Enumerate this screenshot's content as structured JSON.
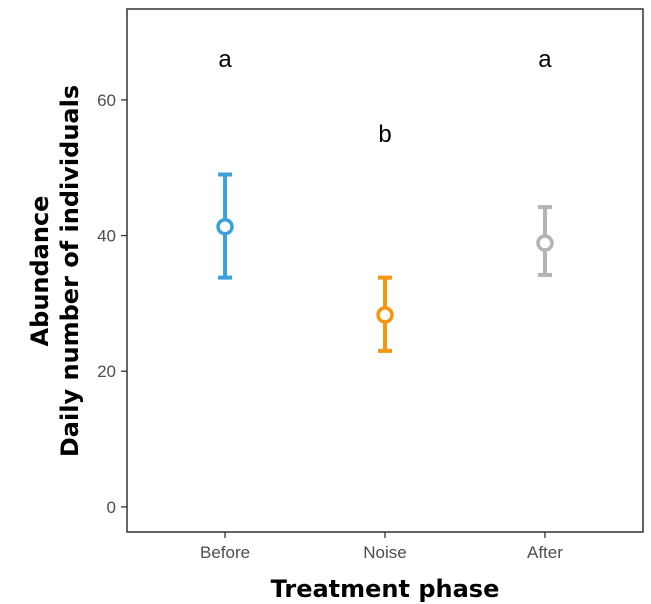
{
  "chart_data": {
    "type": "scatter",
    "subtype": "point-with-error-bars",
    "categories": [
      "Before",
      "Noise",
      "After"
    ],
    "points": [
      {
        "category": "Before",
        "mean": 41.3,
        "lower": 33.8,
        "upper": 49.0,
        "letter": "a",
        "color": "#3ca0dc"
      },
      {
        "category": "Noise",
        "mean": 28.3,
        "lower": 23.0,
        "upper": 33.8,
        "letter": "b",
        "color": "#f5960f"
      },
      {
        "category": "After",
        "mean": 38.9,
        "lower": 34.2,
        "upper": 44.2,
        "letter": "a",
        "color": "#b4b4b4"
      }
    ],
    "letter_values": [
      66.0,
      55.0,
      66.0
    ],
    "xlabel": "Treatment phase",
    "ylabel_lines": [
      "Abundance",
      "Daily number of individuals"
    ],
    "yticks": [
      0,
      20,
      40,
      60
    ],
    "ylim": [
      -3.7,
      73.4
    ],
    "grid": false,
    "legend": "none"
  }
}
